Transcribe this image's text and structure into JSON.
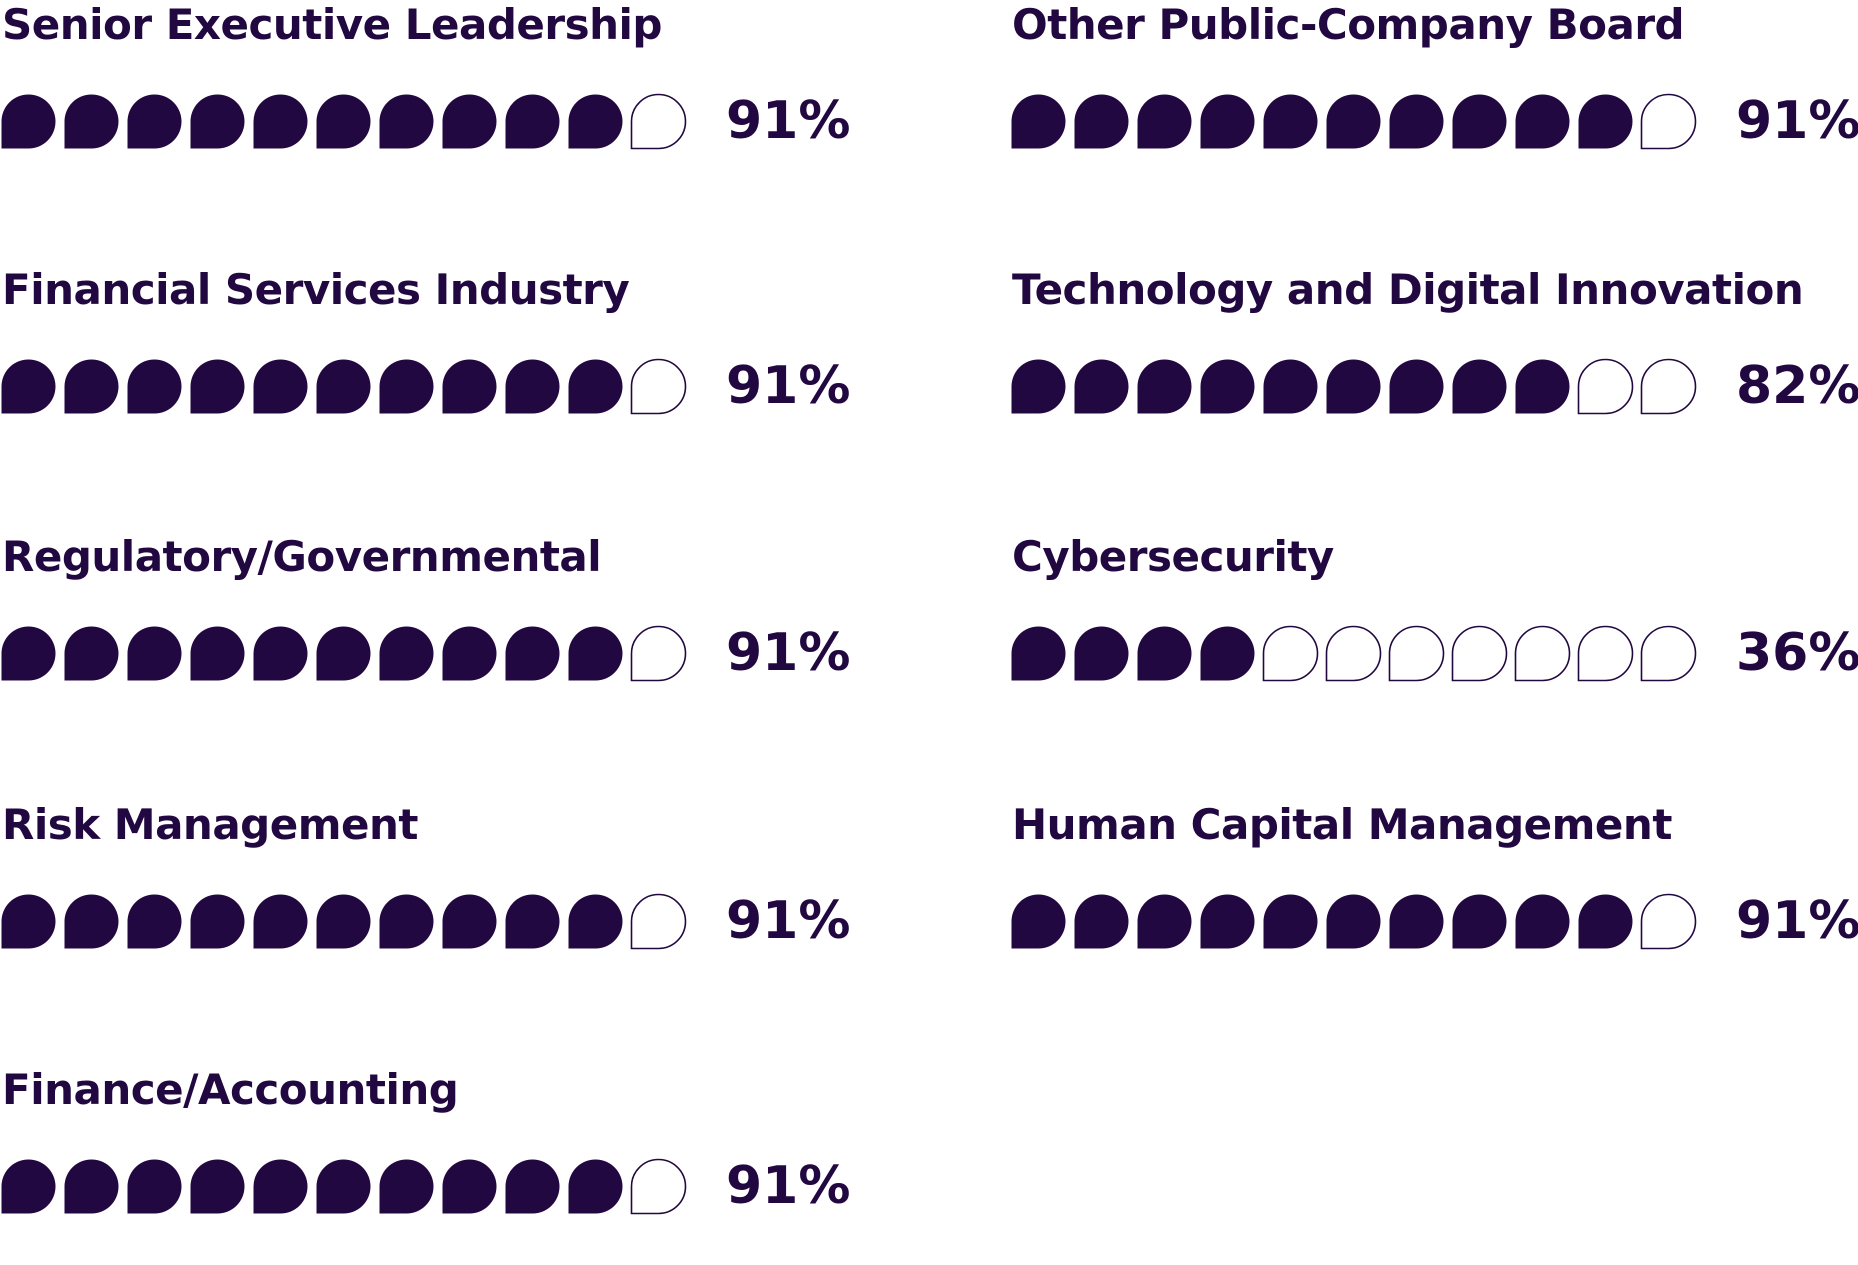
{
  "chart_data": {
    "type": "table",
    "title": "",
    "unit": "%",
    "dots_total": 11,
    "colors": {
      "filled": "#220840",
      "empty": "#ffffff"
    },
    "categories": [
      {
        "label": "Senior Executive Leadership",
        "value": 91,
        "value_text": "91%",
        "filled_dots": 10
      },
      {
        "label": "Financial Services Industry",
        "value": 91,
        "value_text": "91%",
        "filled_dots": 10
      },
      {
        "label": "Regulatory/Governmental",
        "value": 91,
        "value_text": "91%",
        "filled_dots": 10
      },
      {
        "label": "Risk Management",
        "value": 91,
        "value_text": "91%",
        "filled_dots": 10
      },
      {
        "label": "Finance/Accounting",
        "value": 91,
        "value_text": "91%",
        "filled_dots": 10
      },
      {
        "label": "Other Public-Company Board",
        "value": 91,
        "value_text": "91%",
        "filled_dots": 10
      },
      {
        "label": "Technology and Digital Innovation",
        "value": 82,
        "value_text": "82%",
        "filled_dots": 9
      },
      {
        "label": "Cybersecurity",
        "value": 36,
        "value_text": "36%",
        "filled_dots": 4
      },
      {
        "label": "Human Capital Management",
        "value": 91,
        "value_text": "91%",
        "filled_dots": 10
      }
    ]
  }
}
